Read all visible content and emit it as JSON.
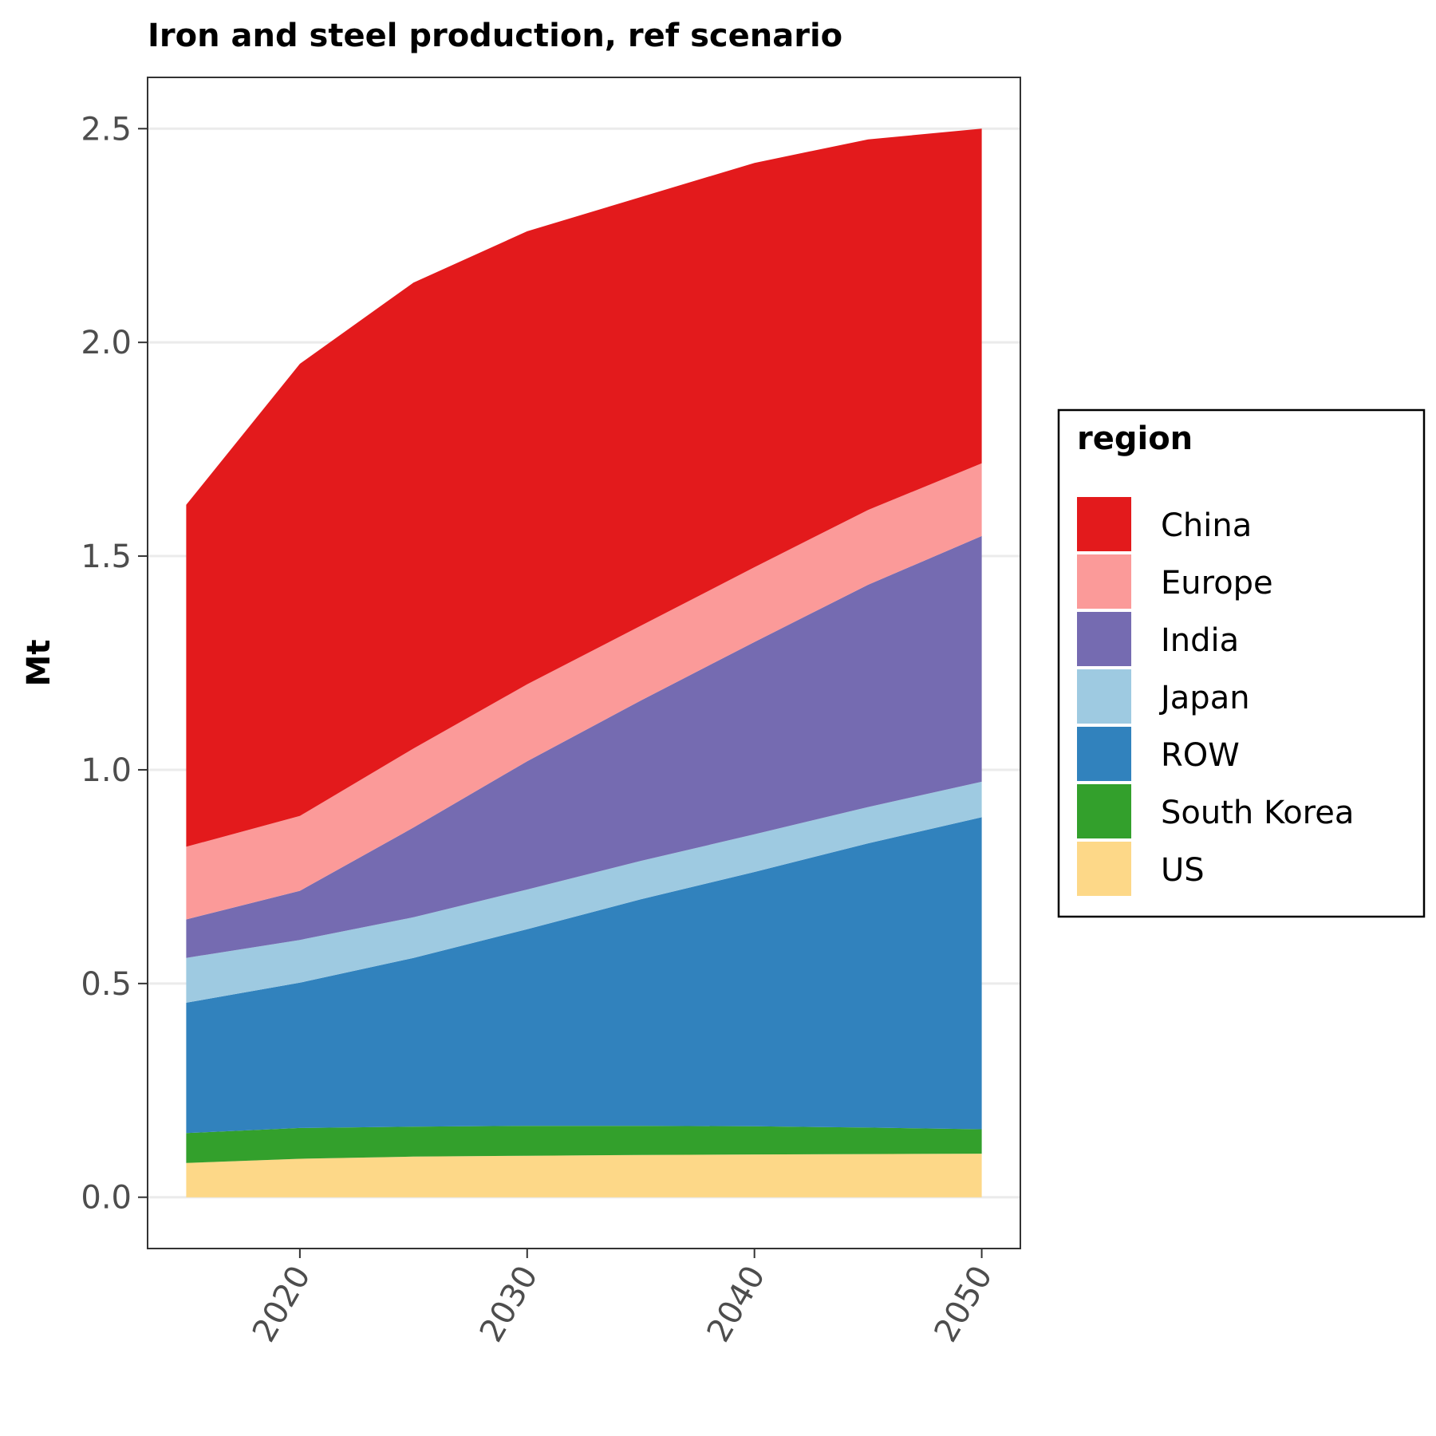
{
  "chart_data": {
    "type": "area",
    "stacked": true,
    "title": "Iron and steel production, ref scenario",
    "xlabel": "",
    "ylabel": "Mt",
    "x": [
      2015,
      2020,
      2025,
      2030,
      2035,
      2040,
      2045,
      2050
    ],
    "xlim": [
      2013.3,
      2051.7
    ],
    "ylim": [
      -0.12,
      2.62
    ],
    "x_ticks": [
      2020,
      2030,
      2040,
      2050
    ],
    "y_ticks": [
      0.0,
      0.5,
      1.0,
      1.5,
      2.0,
      2.5
    ],
    "x_tick_labels": [
      "2020",
      "2030",
      "2040",
      "2050"
    ],
    "y_tick_labels": [
      "0.0",
      "0.5",
      "1.0",
      "1.5",
      "2.0",
      "2.5"
    ],
    "x_tick_rotation_deg": 60,
    "grid": true,
    "legend": {
      "title": "region",
      "placement": "right"
    },
    "series": [
      {
        "name": "US",
        "color": "#fdd888",
        "values": [
          0.08,
          0.09,
          0.095,
          0.097,
          0.099,
          0.1,
          0.101,
          0.102
        ]
      },
      {
        "name": "South Korea",
        "color": "#33a02c",
        "values": [
          0.07,
          0.072,
          0.07,
          0.07,
          0.068,
          0.066,
          0.062,
          0.057
        ]
      },
      {
        "name": "ROW",
        "color": "#3182bd",
        "values": [
          0.305,
          0.34,
          0.395,
          0.46,
          0.53,
          0.595,
          0.665,
          0.73
        ]
      },
      {
        "name": "Japan",
        "color": "#9ecae1",
        "values": [
          0.105,
          0.1,
          0.095,
          0.093,
          0.09,
          0.088,
          0.085,
          0.083
        ]
      },
      {
        "name": "India",
        "color": "#756bb1",
        "values": [
          0.09,
          0.115,
          0.21,
          0.3,
          0.375,
          0.45,
          0.52,
          0.575
        ]
      },
      {
        "name": "Europe",
        "color": "#fb9a99",
        "values": [
          0.17,
          0.175,
          0.185,
          0.18,
          0.175,
          0.175,
          0.175,
          0.17
        ]
      },
      {
        "name": "China",
        "color": "#e31a1c",
        "values": [
          0.8,
          1.058,
          1.09,
          1.06,
          1.003,
          0.946,
          0.867,
          0.783
        ]
      }
    ],
    "legend_order": [
      "China",
      "Europe",
      "India",
      "Japan",
      "ROW",
      "South Korea",
      "US"
    ]
  }
}
